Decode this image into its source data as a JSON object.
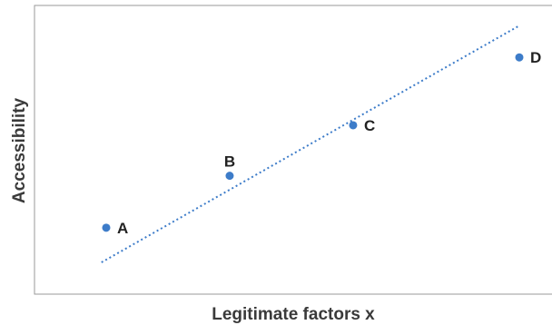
{
  "chart_data": {
    "type": "scatter",
    "xlabel": "Legitimate factors x",
    "ylabel": "Accessibility",
    "xlim": [
      0,
      10
    ],
    "ylim": [
      0,
      10
    ],
    "grid": false,
    "points": [
      {
        "label": "A",
        "x": 1.3,
        "y": 2.3
      },
      {
        "label": "B",
        "x": 3.9,
        "y": 4.1
      },
      {
        "label": "C",
        "x": 6.5,
        "y": 5.85
      },
      {
        "label": "D",
        "x": 10.0,
        "y": 8.2
      }
    ],
    "trendline": {
      "style": "dotted",
      "x": [
        1.2,
        10.0
      ],
      "y": [
        1.1,
        9.3
      ]
    },
    "colors": {
      "point": "#3d7cc9",
      "trendline": "#3d7cc9",
      "axis": "#9a9a9a"
    }
  }
}
